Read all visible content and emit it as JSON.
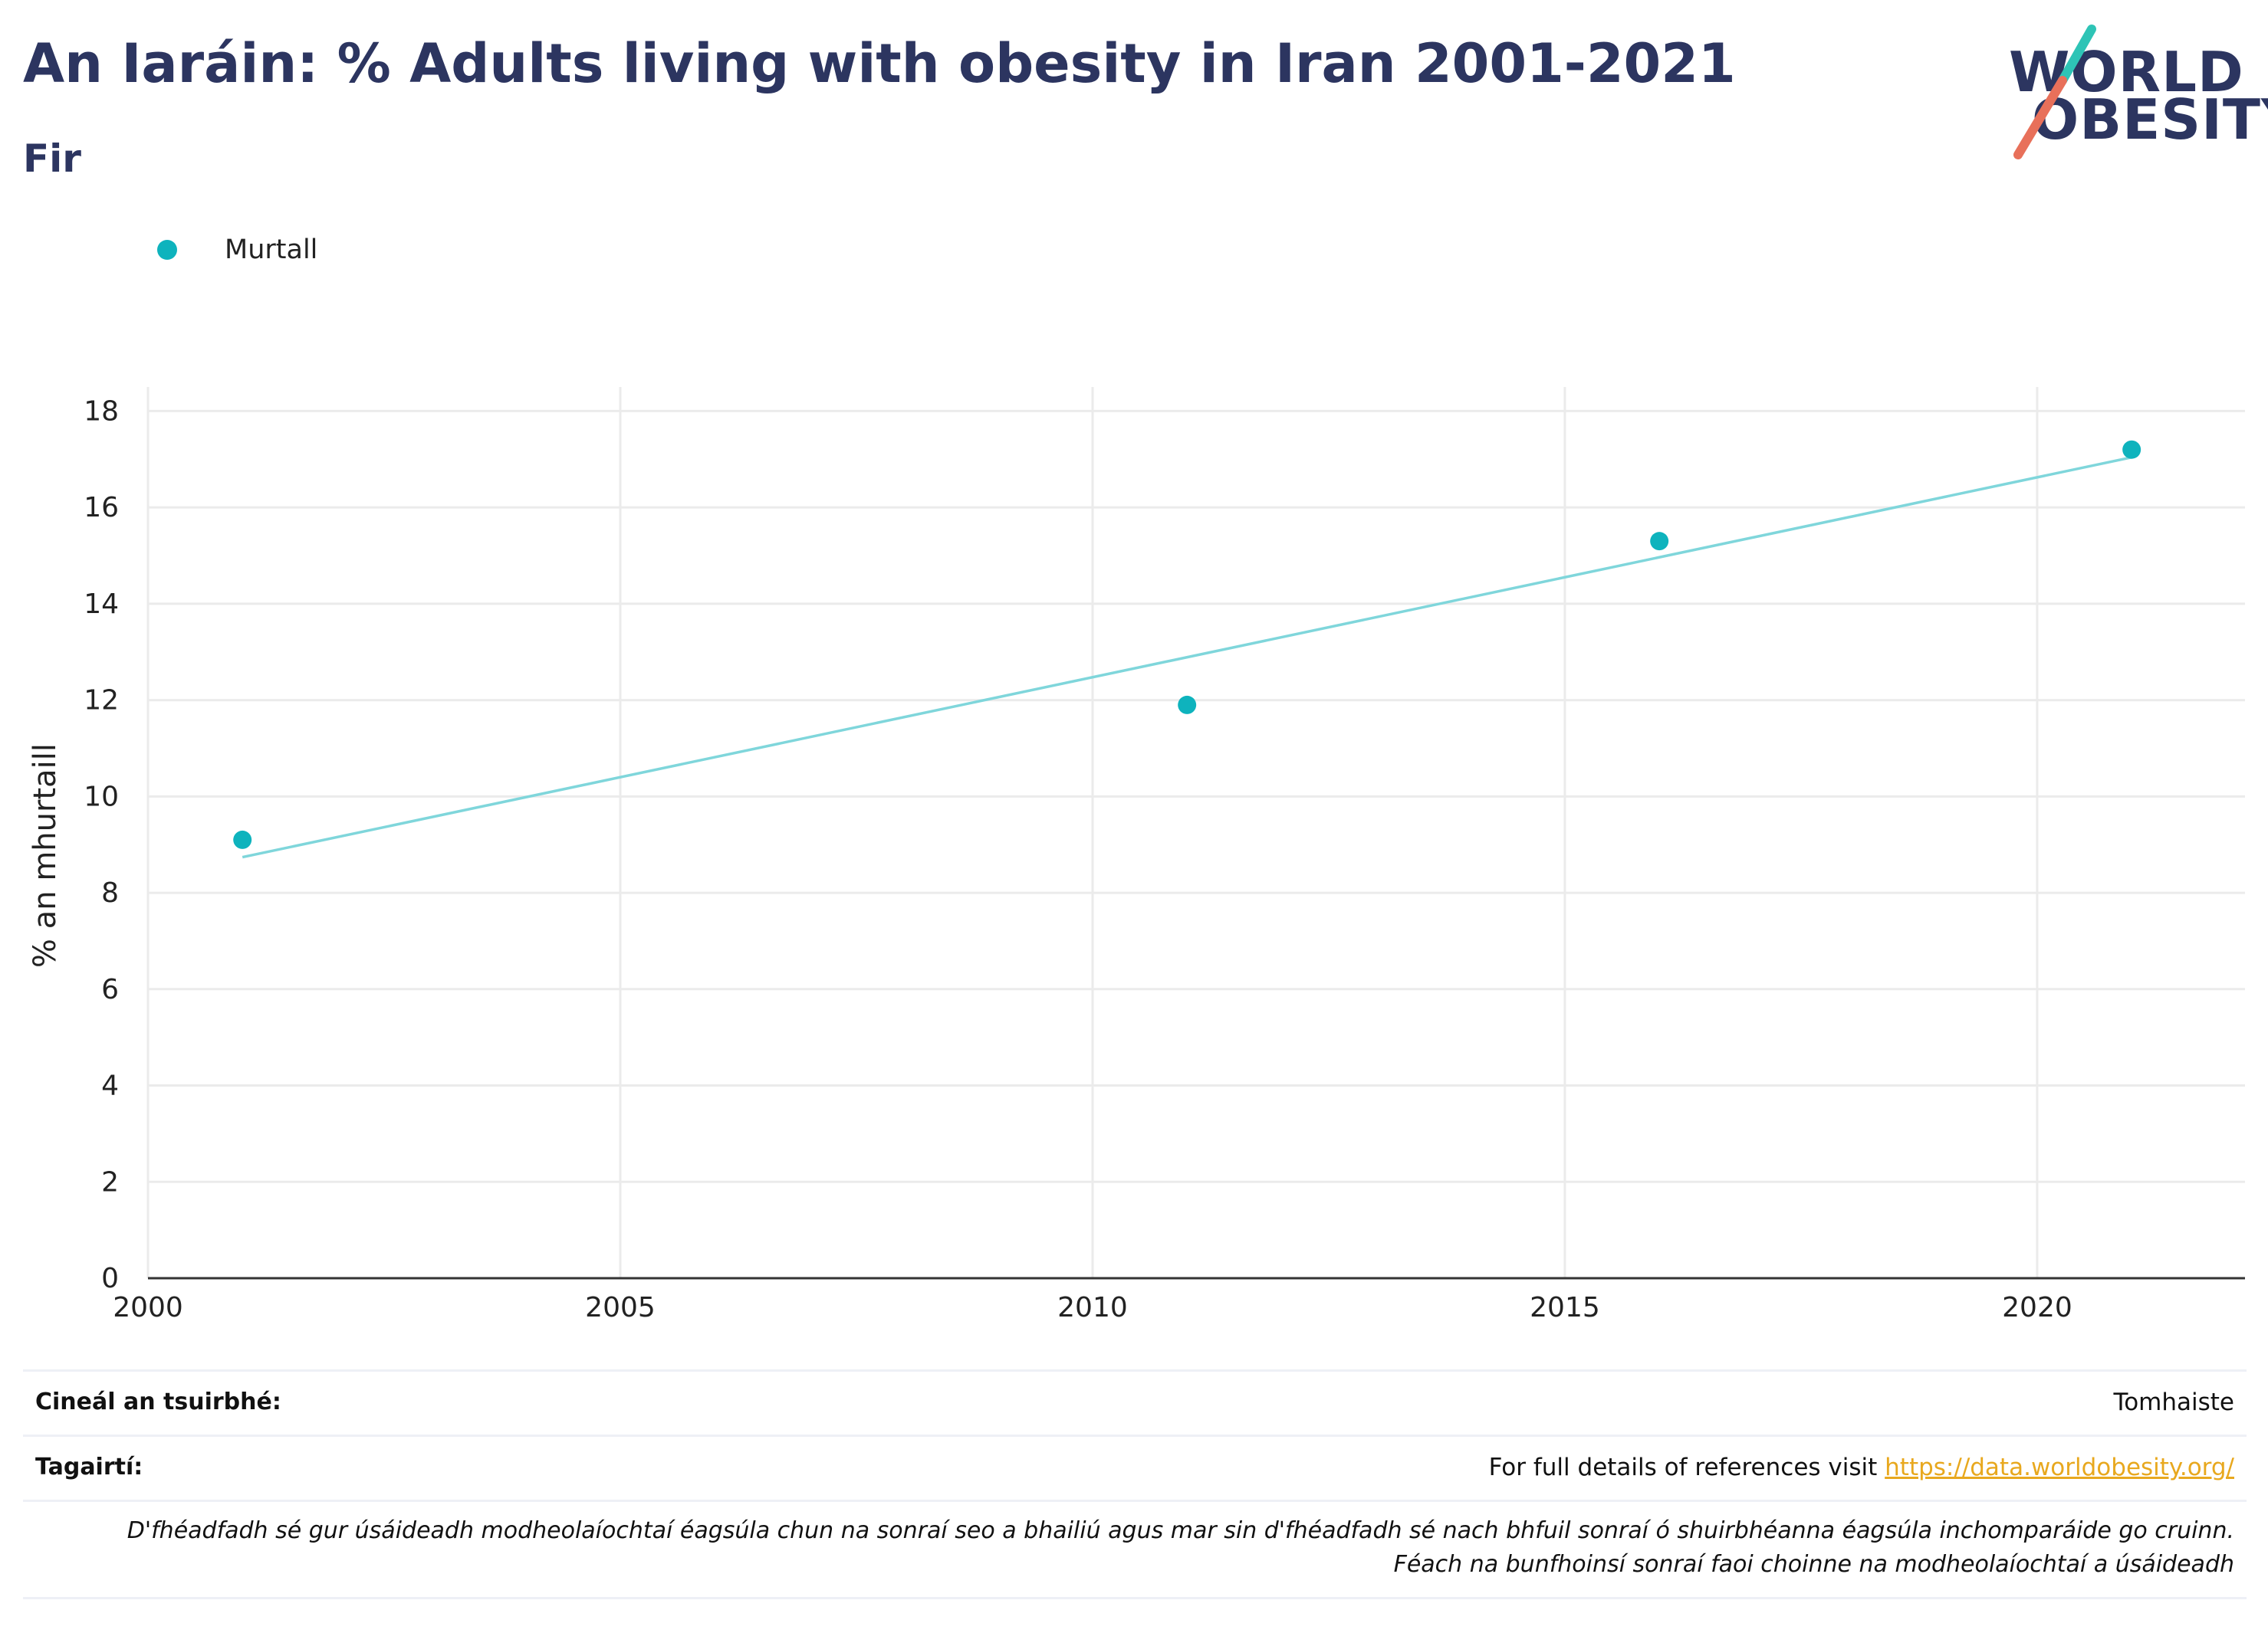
{
  "header": {
    "title": "An Iaráin: % Adults living with obesity in Iran 2001-2021",
    "subtitle": "Fir"
  },
  "logo": {
    "line1": "WORLD",
    "line2": "OBESITY",
    "colors": {
      "teal": "#2ec4b6",
      "coral": "#e8705a",
      "navy": "#2c3560"
    }
  },
  "legend": {
    "label": "Murtall"
  },
  "chart_data": {
    "type": "scatter",
    "ylabel": "% an mhurtaill",
    "xlabel": "",
    "xlim": [
      2000,
      2022.2
    ],
    "ylim": [
      0,
      18.5
    ],
    "x_ticks": [
      2000,
      2005,
      2010,
      2015,
      2020
    ],
    "y_ticks": [
      0,
      2,
      4,
      6,
      8,
      10,
      12,
      14,
      16,
      18
    ],
    "grid": true,
    "legend_position": "top-left",
    "series": [
      {
        "name": "Murtall",
        "color": "#0eb3bd",
        "x": [
          2001,
          2011,
          2016,
          2021
        ],
        "y": [
          9.1,
          11.9,
          15.3,
          17.2
        ]
      }
    ],
    "trendline": {
      "color": "#7fd6db",
      "x": [
        2001,
        2021
      ],
      "y": [
        8.74,
        17.04
      ]
    }
  },
  "footer": {
    "survey_type_label": "Cineál an tsuirbhé:",
    "survey_type_value": "Tomhaiste",
    "references_label": "Tagairtí:",
    "references_text": "For full details of references visit ",
    "references_link": "https://data.worldobesity.org/",
    "note_line1": "D'fhéadfadh sé gur úsáideadh modheolaíochtaí éagsúla chun na sonraí seo a bhailiú agus mar sin d'fhéadfadh sé nach bhfuil sonraí ó shuirbhéanna éagsúla inchomparáide go cruinn.",
    "note_line2": "Féach na bunfhoinsí sonraí faoi choinne na modheolaíochtaí a úsáideadh"
  }
}
